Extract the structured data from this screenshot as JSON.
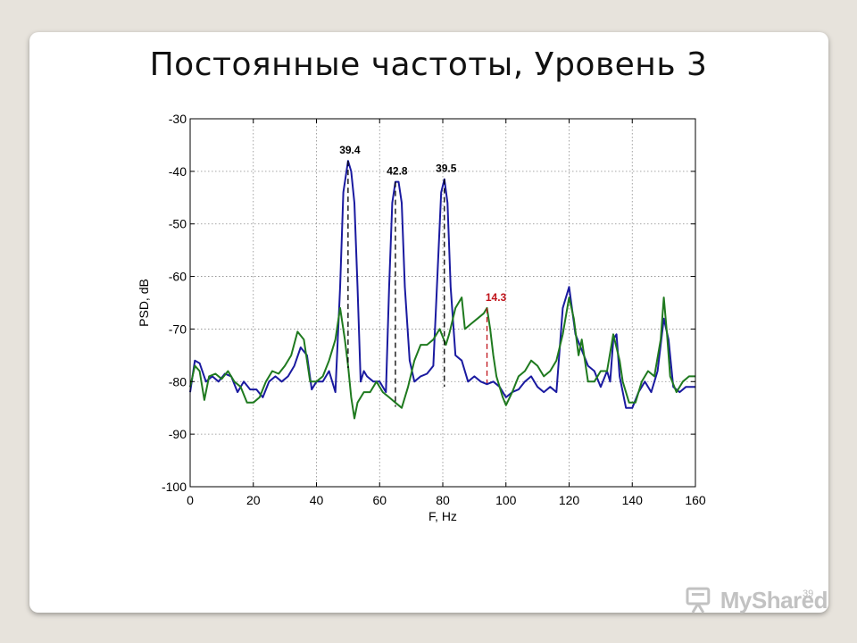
{
  "slide": {
    "title": "Постоянные частоты, Уровень 3",
    "number": "39",
    "watermark": "MyShared"
  },
  "colors": {
    "blue": "#1a1aa0",
    "green": "#1f7a1f",
    "annotation_red": "#c0121a",
    "grid": "#8a8a8a"
  },
  "chart_data": {
    "type": "line",
    "xlabel": "F, Hz",
    "ylabel": "PSD, dB",
    "xlim": [
      0,
      160
    ],
    "ylim": [
      -100,
      -30
    ],
    "xticks": [
      0,
      20,
      40,
      60,
      80,
      100,
      120,
      140,
      160
    ],
    "yticks": [
      -30,
      -40,
      -50,
      -60,
      -70,
      -80,
      -90,
      -100
    ],
    "grid": true,
    "series": [
      {
        "color": "#1a1aa0",
        "points": [
          [
            0,
            -82
          ],
          [
            1.5,
            -76
          ],
          [
            3,
            -76.5
          ],
          [
            5,
            -80
          ],
          [
            7,
            -79
          ],
          [
            9,
            -80
          ],
          [
            11,
            -78.5
          ],
          [
            13,
            -79
          ],
          [
            15,
            -82
          ],
          [
            17,
            -80
          ],
          [
            19,
            -81.5
          ],
          [
            21,
            -81.5
          ],
          [
            23,
            -83
          ],
          [
            25,
            -80
          ],
          [
            27,
            -79
          ],
          [
            29,
            -80
          ],
          [
            31,
            -79
          ],
          [
            33,
            -77
          ],
          [
            35,
            -73.5
          ],
          [
            37,
            -75
          ],
          [
            38.5,
            -81.5
          ],
          [
            40,
            -80
          ],
          [
            42,
            -80
          ],
          [
            44,
            -78
          ],
          [
            46,
            -82
          ],
          [
            47.5,
            -62
          ],
          [
            48.5,
            -44
          ],
          [
            50,
            -38
          ],
          [
            51,
            -40
          ],
          [
            52,
            -46
          ],
          [
            53,
            -62
          ],
          [
            54,
            -80
          ],
          [
            55,
            -78
          ],
          [
            56,
            -79
          ],
          [
            58,
            -80
          ],
          [
            60,
            -80
          ],
          [
            62,
            -82
          ],
          [
            63,
            -62
          ],
          [
            64,
            -46
          ],
          [
            65,
            -42
          ],
          [
            66,
            -42
          ],
          [
            67,
            -46
          ],
          [
            68,
            -62
          ],
          [
            69.5,
            -76
          ],
          [
            71,
            -80
          ],
          [
            73,
            -79
          ],
          [
            75,
            -78.5
          ],
          [
            77,
            -77
          ],
          [
            78,
            -64
          ],
          [
            79.5,
            -44
          ],
          [
            80.5,
            -41.5
          ],
          [
            81.5,
            -46
          ],
          [
            82.5,
            -62
          ],
          [
            84,
            -75
          ],
          [
            86,
            -76
          ],
          [
            88,
            -80
          ],
          [
            90,
            -79
          ],
          [
            92,
            -80
          ],
          [
            94,
            -80.5
          ],
          [
            96,
            -80
          ],
          [
            98,
            -81
          ],
          [
            100,
            -83
          ],
          [
            102,
            -82
          ],
          [
            104,
            -81.5
          ],
          [
            106,
            -80
          ],
          [
            108,
            -79
          ],
          [
            110,
            -81
          ],
          [
            112,
            -82
          ],
          [
            114,
            -81
          ],
          [
            116,
            -82
          ],
          [
            118,
            -66
          ],
          [
            120,
            -62
          ],
          [
            122,
            -71
          ],
          [
            124,
            -74
          ],
          [
            126,
            -77
          ],
          [
            128,
            -78
          ],
          [
            130,
            -81
          ],
          [
            132,
            -78
          ],
          [
            133,
            -80
          ],
          [
            134,
            -72
          ],
          [
            135,
            -71
          ],
          [
            136,
            -79
          ],
          [
            138,
            -85
          ],
          [
            140,
            -85
          ],
          [
            142,
            -82
          ],
          [
            144,
            -80
          ],
          [
            146,
            -82
          ],
          [
            148,
            -78
          ],
          [
            150,
            -68
          ],
          [
            151.5,
            -72
          ],
          [
            153,
            -81
          ],
          [
            155,
            -82
          ],
          [
            157,
            -81
          ],
          [
            158,
            -81
          ],
          [
            160,
            -81
          ]
        ]
      },
      {
        "color": "#1f7a1f",
        "points": [
          [
            0,
            -81
          ],
          [
            1.5,
            -77
          ],
          [
            3,
            -78
          ],
          [
            4.5,
            -83.5
          ],
          [
            6,
            -79
          ],
          [
            8,
            -78.5
          ],
          [
            10,
            -79.5
          ],
          [
            12,
            -78
          ],
          [
            14,
            -80
          ],
          [
            16,
            -81
          ],
          [
            18,
            -84
          ],
          [
            20,
            -84
          ],
          [
            22,
            -83
          ],
          [
            24,
            -80
          ],
          [
            26,
            -78
          ],
          [
            28,
            -78.5
          ],
          [
            30,
            -77
          ],
          [
            32,
            -75
          ],
          [
            34,
            -70.5
          ],
          [
            36,
            -72
          ],
          [
            38,
            -80
          ],
          [
            40,
            -80
          ],
          [
            42,
            -79
          ],
          [
            44,
            -76
          ],
          [
            46,
            -72
          ],
          [
            47.5,
            -66
          ],
          [
            49,
            -72
          ],
          [
            50,
            -77
          ],
          [
            51,
            -83
          ],
          [
            52,
            -87
          ],
          [
            53,
            -84
          ],
          [
            55,
            -82
          ],
          [
            57,
            -82
          ],
          [
            59,
            -80
          ],
          [
            61,
            -82
          ],
          [
            63,
            -83
          ],
          [
            65,
            -84
          ],
          [
            67,
            -85
          ],
          [
            69,
            -81
          ],
          [
            71,
            -76
          ],
          [
            73,
            -73
          ],
          [
            75,
            -73
          ],
          [
            77,
            -72
          ],
          [
            79,
            -70
          ],
          [
            81,
            -73
          ],
          [
            82,
            -71
          ],
          [
            84,
            -66
          ],
          [
            86,
            -64
          ],
          [
            87,
            -70
          ],
          [
            89,
            -69
          ],
          [
            91,
            -68
          ],
          [
            93,
            -67
          ],
          [
            94,
            -66
          ],
          [
            95,
            -70
          ],
          [
            96,
            -75
          ],
          [
            97,
            -79
          ],
          [
            99,
            -83
          ],
          [
            100,
            -84.5
          ],
          [
            102,
            -82
          ],
          [
            104,
            -79
          ],
          [
            106,
            -78
          ],
          [
            108,
            -76
          ],
          [
            110,
            -77
          ],
          [
            112,
            -79
          ],
          [
            114,
            -78
          ],
          [
            116,
            -76
          ],
          [
            118,
            -71
          ],
          [
            120,
            -64
          ],
          [
            121.5,
            -68
          ],
          [
            123,
            -75
          ],
          [
            124,
            -72
          ],
          [
            126,
            -80
          ],
          [
            128,
            -80
          ],
          [
            130,
            -78
          ],
          [
            132,
            -78
          ],
          [
            134,
            -71
          ],
          [
            136,
            -76
          ],
          [
            137,
            -80
          ],
          [
            139,
            -84
          ],
          [
            141,
            -84
          ],
          [
            143,
            -80
          ],
          [
            145,
            -78
          ],
          [
            147,
            -79
          ],
          [
            149,
            -72
          ],
          [
            150,
            -64
          ],
          [
            151,
            -71
          ],
          [
            152,
            -79
          ],
          [
            154,
            -82
          ],
          [
            156,
            -80
          ],
          [
            158,
            -79
          ],
          [
            160,
            -79
          ]
        ]
      }
    ],
    "annotations": [
      {
        "text": "39.4",
        "x": 50,
        "y_top": -38,
        "y_bottom": -77.4,
        "color": "#000000"
      },
      {
        "text": "42.8",
        "x": 65,
        "y_top": -42,
        "y_bottom": -84.8,
        "color": "#000000"
      },
      {
        "text": "39.5",
        "x": 80.5,
        "y_top": -41.5,
        "y_bottom": -81,
        "color": "#000000"
      },
      {
        "text": "14.3",
        "x": 94,
        "y_top": -66,
        "y_bottom": -80.3,
        "color": "#c0121a"
      }
    ]
  }
}
